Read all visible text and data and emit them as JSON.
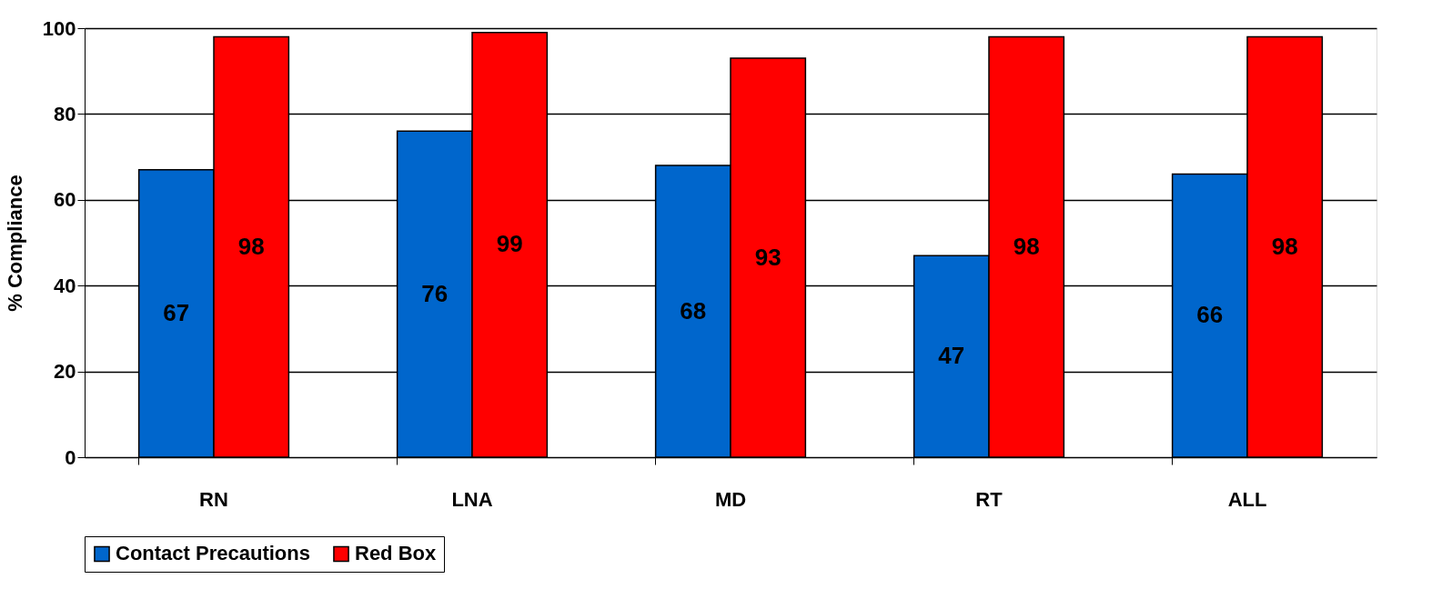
{
  "chart_data": {
    "type": "bar",
    "ylabel": "% Compliance",
    "categories": [
      "RN",
      "LNA",
      "MD",
      "RT",
      "ALL"
    ],
    "series": [
      {
        "name": "Contact Precautions",
        "color": "#0066cc",
        "values": [
          67,
          76,
          68,
          47,
          66
        ]
      },
      {
        "name": "Red Box",
        "color": "#ff0000",
        "values": [
          98,
          99,
          93,
          98,
          98
        ]
      }
    ],
    "ylim": [
      0,
      100
    ],
    "yticks": [
      0,
      20,
      40,
      60,
      80,
      100
    ],
    "grid": "y",
    "legend": "bottom",
    "data_labels": true
  }
}
